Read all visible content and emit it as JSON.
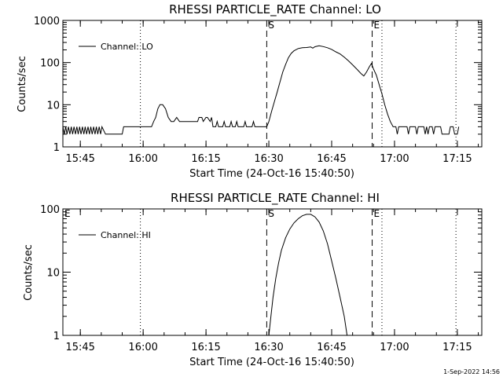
{
  "footer": {
    "timestamp": "1-Sep-2022 14:56"
  },
  "chart_data": [
    {
      "type": "line",
      "title": "RHESSI PARTICLE_RATE Channel: LO",
      "xlabel": "Start Time (24-Oct-16 15:40:50)",
      "ylabel": "Counts/sec",
      "y_scale": "log",
      "ylim": [
        1,
        1000
      ],
      "xlim": [
        "15:40:50",
        "17:20:50"
      ],
      "x_ticks": [
        "15:45",
        "16:00",
        "16:15",
        "16:30",
        "16:45",
        "17:00",
        "17:15"
      ],
      "y_ticks": [
        "1",
        "10",
        "100",
        "1000"
      ],
      "grid": false,
      "legend": {
        "position": "top-left",
        "entries": [
          "Channel: LO"
        ]
      },
      "markers": [
        {
          "time": "16:29:30",
          "label": "S",
          "style": "dashed"
        },
        {
          "time": "16:54:40",
          "label": "E",
          "style": "dashed"
        }
      ],
      "vertical_lines_dotted": [
        "15:59:20",
        "16:57:00",
        "17:14:40"
      ],
      "series": [
        {
          "name": "Channel: LO",
          "points": [
            [
              "15:40:50",
              3
            ],
            [
              "15:41:10",
              2
            ],
            [
              "15:41:30",
              3
            ],
            [
              "15:41:50",
              2
            ],
            [
              "15:42:10",
              3
            ],
            [
              "15:42:30",
              2
            ],
            [
              "15:42:50",
              3
            ],
            [
              "15:43:10",
              2
            ],
            [
              "15:43:30",
              3
            ],
            [
              "15:43:50",
              2
            ],
            [
              "15:44:10",
              3
            ],
            [
              "15:44:30",
              2
            ],
            [
              "15:44:50",
              3
            ],
            [
              "15:45:10",
              2
            ],
            [
              "15:45:30",
              3
            ],
            [
              "15:45:50",
              2
            ],
            [
              "15:46:10",
              3
            ],
            [
              "15:46:30",
              2
            ],
            [
              "15:46:50",
              3
            ],
            [
              "15:47:10",
              2
            ],
            [
              "15:47:30",
              3
            ],
            [
              "15:47:50",
              2
            ],
            [
              "15:48:10",
              3
            ],
            [
              "15:48:30",
              2
            ],
            [
              "15:48:50",
              3
            ],
            [
              "15:49:10",
              2
            ],
            [
              "15:49:30",
              3
            ],
            [
              "15:49:50",
              2
            ],
            [
              "15:50:10",
              3
            ],
            [
              "15:51:00",
              2
            ],
            [
              "15:55:00",
              2
            ],
            [
              "15:55:20",
              3
            ],
            [
              "16:00:00",
              3
            ],
            [
              "16:02:00",
              3
            ],
            [
              "16:02:30",
              4
            ],
            [
              "16:03:00",
              5
            ],
            [
              "16:03:30",
              8
            ],
            [
              "16:04:00",
              10
            ],
            [
              "16:04:40",
              10
            ],
            [
              "16:05:20",
              8
            ],
            [
              "16:06:00",
              5
            ],
            [
              "16:06:40",
              4
            ],
            [
              "16:07:20",
              4
            ],
            [
              "16:08:00",
              5
            ],
            [
              "16:08:40",
              4
            ],
            [
              "16:09:20",
              4
            ],
            [
              "16:10:00",
              4
            ],
            [
              "16:11:00",
              4
            ],
            [
              "16:12:00",
              4
            ],
            [
              "16:13:00",
              4
            ],
            [
              "16:13:20",
              5
            ],
            [
              "16:14:00",
              5
            ],
            [
              "16:14:20",
              4
            ],
            [
              "16:15:00",
              5
            ],
            [
              "16:15:20",
              5
            ],
            [
              "16:16:00",
              4
            ],
            [
              "16:16:20",
              5
            ],
            [
              "16:16:40",
              3
            ],
            [
              "16:17:20",
              3
            ],
            [
              "16:17:40",
              4
            ],
            [
              "16:18:00",
              3
            ],
            [
              "16:19:00",
              3
            ],
            [
              "16:19:20",
              4
            ],
            [
              "16:19:40",
              3
            ],
            [
              "16:20:40",
              3
            ],
            [
              "16:21:00",
              4
            ],
            [
              "16:21:20",
              3
            ],
            [
              "16:22:00",
              3
            ],
            [
              "16:22:20",
              4
            ],
            [
              "16:22:40",
              3
            ],
            [
              "16:24:00",
              3
            ],
            [
              "16:24:20",
              4
            ],
            [
              "16:24:40",
              3
            ],
            [
              "16:26:00",
              3
            ],
            [
              "16:26:20",
              4
            ],
            [
              "16:26:40",
              3
            ],
            [
              "16:29:30",
              3
            ],
            [
              "16:30:00",
              4
            ],
            [
              "16:30:40",
              7
            ],
            [
              "16:31:20",
              12
            ],
            [
              "16:32:00",
              20
            ],
            [
              "16:32:40",
              35
            ],
            [
              "16:33:20",
              60
            ],
            [
              "16:34:00",
              90
            ],
            [
              "16:34:40",
              130
            ],
            [
              "16:35:20",
              165
            ],
            [
              "16:36:00",
              190
            ],
            [
              "16:37:00",
              215
            ],
            [
              "16:38:00",
              225
            ],
            [
              "16:39:00",
              228
            ],
            [
              "16:40:00",
              235
            ],
            [
              "16:40:30",
              220
            ],
            [
              "16:41:00",
              238
            ],
            [
              "16:42:00",
              250
            ],
            [
              "16:43:00",
              240
            ],
            [
              "16:44:00",
              225
            ],
            [
              "16:45:00",
              205
            ],
            [
              "16:46:00",
              180
            ],
            [
              "16:47:00",
              160
            ],
            [
              "16:48:00",
              135
            ],
            [
              "16:49:00",
              110
            ],
            [
              "16:50:00",
              88
            ],
            [
              "16:51:00",
              70
            ],
            [
              "16:52:00",
              55
            ],
            [
              "16:52:40",
              48
            ],
            [
              "16:53:20",
              60
            ],
            [
              "16:54:00",
              80
            ],
            [
              "16:54:30",
              95
            ],
            [
              "16:55:00",
              70
            ],
            [
              "16:55:40",
              50
            ],
            [
              "16:56:20",
              30
            ],
            [
              "16:57:00",
              18
            ],
            [
              "16:57:40",
              10
            ],
            [
              "16:58:20",
              6
            ],
            [
              "16:59:00",
              4
            ],
            [
              "16:59:40",
              3
            ],
            [
              "17:00:20",
              3
            ],
            [
              "17:00:40",
              2
            ],
            [
              "17:01:00",
              3
            ],
            [
              "17:03:00",
              3
            ],
            [
              "17:03:20",
              2
            ],
            [
              "17:03:40",
              3
            ],
            [
              "17:05:00",
              3
            ],
            [
              "17:05:20",
              2
            ],
            [
              "17:05:40",
              3
            ],
            [
              "17:07:00",
              3
            ],
            [
              "17:07:20",
              2
            ],
            [
              "17:07:40",
              3
            ],
            [
              "17:08:00",
              2
            ],
            [
              "17:08:20",
              3
            ],
            [
              "17:09:00",
              3
            ],
            [
              "17:09:20",
              2
            ],
            [
              "17:09:40",
              3
            ],
            [
              "17:11:00",
              3
            ],
            [
              "17:11:20",
              2
            ],
            [
              "17:13:00",
              2
            ],
            [
              "17:13:20",
              3
            ],
            [
              "17:14:00",
              3
            ],
            [
              "17:14:20",
              2
            ],
            [
              "17:15:00",
              2
            ],
            [
              "17:15:20",
              3
            ]
          ]
        }
      ]
    },
    {
      "type": "line",
      "title": "RHESSI PARTICLE_RATE Channel: HI",
      "xlabel": "Start Time (24-Oct-16 15:40:50)",
      "ylabel": "Counts/sec",
      "y_scale": "log",
      "ylim": [
        1,
        100
      ],
      "xlim": [
        "15:40:50",
        "17:20:50"
      ],
      "x_ticks": [
        "15:45",
        "16:00",
        "16:15",
        "16:30",
        "16:45",
        "17:00",
        "17:15"
      ],
      "y_ticks": [
        "1",
        "10",
        "100"
      ],
      "grid": false,
      "legend": {
        "position": "top-left",
        "entries": [
          "Channel: HI"
        ]
      },
      "markers": [
        {
          "time": "15:40:50",
          "label": "E",
          "style": "none"
        },
        {
          "time": "16:29:30",
          "label": "S",
          "style": "dashed"
        },
        {
          "time": "16:54:40",
          "label": "E",
          "style": "dashed"
        }
      ],
      "vertical_lines_dotted": [
        "15:59:20",
        "16:57:00",
        "17:14:40"
      ],
      "series": [
        {
          "name": "Channel: HI",
          "points": [
            [
              "16:30:00",
              1
            ],
            [
              "16:30:30",
              2
            ],
            [
              "16:31:00",
              4
            ],
            [
              "16:31:40",
              8
            ],
            [
              "16:32:20",
              14
            ],
            [
              "16:33:00",
              22
            ],
            [
              "16:34:00",
              35
            ],
            [
              "16:35:00",
              48
            ],
            [
              "16:36:00",
              60
            ],
            [
              "16:37:00",
              70
            ],
            [
              "16:38:00",
              78
            ],
            [
              "16:39:00",
              82
            ],
            [
              "16:40:00",
              82
            ],
            [
              "16:41:00",
              75
            ],
            [
              "16:42:00",
              62
            ],
            [
              "16:43:00",
              45
            ],
            [
              "16:44:00",
              28
            ],
            [
              "16:45:00",
              15
            ],
            [
              "16:46:00",
              8
            ],
            [
              "16:47:00",
              4
            ],
            [
              "16:48:00",
              2
            ],
            [
              "16:48:40",
              1
            ]
          ]
        }
      ]
    }
  ]
}
